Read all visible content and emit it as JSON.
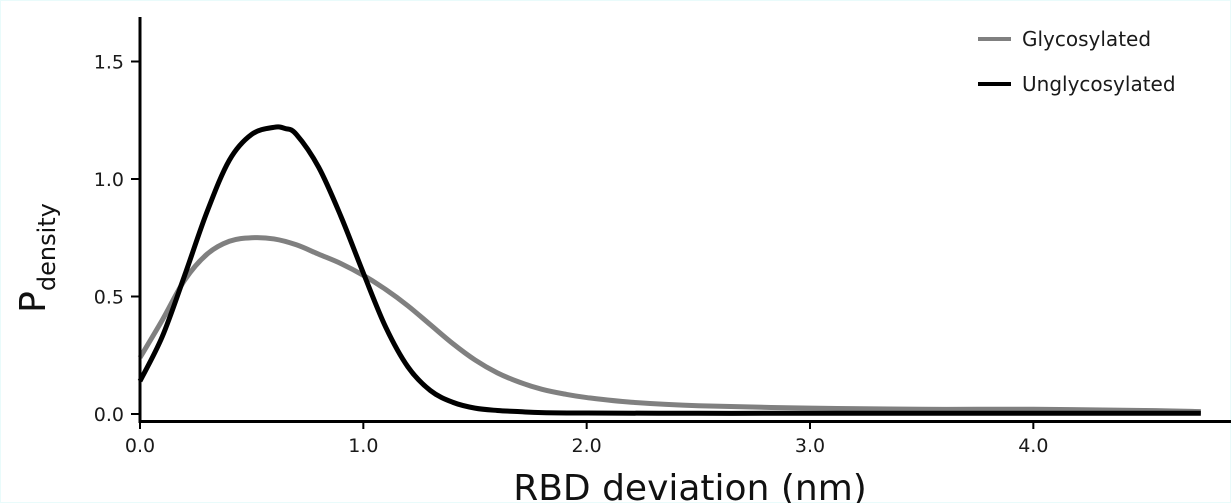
{
  "chart_data": {
    "type": "line",
    "xlabel": "RBD deviation (nm)",
    "ylabel_main": "P",
    "ylabel_sub": "density",
    "xlim": [
      0.0,
      4.8
    ],
    "ylim": [
      0.0,
      1.6
    ],
    "xticks": [
      0.0,
      1.0,
      2.0,
      3.0,
      4.0
    ],
    "xtick_labels": [
      "0.0",
      "1.0",
      "2.0",
      "3.0",
      "4.0"
    ],
    "yticks": [
      0.0,
      0.5,
      1.0,
      1.5
    ],
    "ytick_labels": [
      "0.0",
      "0.5",
      "1.0",
      "1.5"
    ],
    "grid": false,
    "legend": "top-right",
    "series": [
      {
        "name": "Glycosylated",
        "color": "#808080",
        "x": [
          0.0,
          0.1,
          0.2,
          0.3,
          0.4,
          0.5,
          0.6,
          0.7,
          0.8,
          0.9,
          1.0,
          1.1,
          1.2,
          1.3,
          1.4,
          1.5,
          1.6,
          1.7,
          1.8,
          1.9,
          2.0,
          2.2,
          2.5,
          3.0,
          3.5,
          4.0,
          4.5,
          4.75
        ],
        "y": [
          0.24,
          0.4,
          0.57,
          0.68,
          0.735,
          0.75,
          0.745,
          0.72,
          0.68,
          0.64,
          0.59,
          0.53,
          0.46,
          0.38,
          0.3,
          0.23,
          0.175,
          0.135,
          0.105,
          0.085,
          0.07,
          0.05,
          0.035,
          0.025,
          0.02,
          0.02,
          0.015,
          0.01
        ]
      },
      {
        "name": "Unglycosylated",
        "color": "#000000",
        "x": [
          0.0,
          0.1,
          0.2,
          0.3,
          0.4,
          0.5,
          0.6,
          0.65,
          0.7,
          0.8,
          0.9,
          1.0,
          1.1,
          1.2,
          1.3,
          1.4,
          1.5,
          1.6,
          1.7,
          1.8,
          2.0,
          2.5,
          3.0,
          4.0,
          4.75
        ],
        "y": [
          0.14,
          0.33,
          0.59,
          0.86,
          1.08,
          1.19,
          1.22,
          1.215,
          1.19,
          1.05,
          0.84,
          0.6,
          0.37,
          0.2,
          0.1,
          0.05,
          0.025,
          0.015,
          0.01,
          0.006,
          0.004,
          0.003,
          0.003,
          0.003,
          0.003
        ]
      }
    ]
  }
}
